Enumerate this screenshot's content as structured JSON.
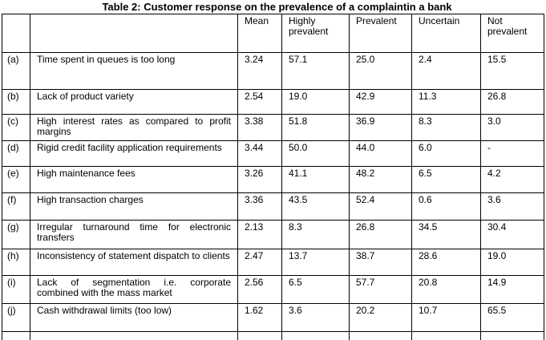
{
  "title": "Table 2: Customer response on the prevalence of a complaintin a bank",
  "headers": [
    "",
    "",
    "Mean",
    "Highly prevalent",
    "Prevalent",
    "Uncertain",
    "Not prevalent"
  ],
  "rows": [
    {
      "label": "(a)",
      "desc": "Time spent in queues is too long",
      "mean": "3.24",
      "highly": "57.1",
      "prevalent": "25.0",
      "uncertain": "2.4",
      "not": "15.5"
    },
    {
      "label": "(b)",
      "desc": "Lack of product variety",
      "mean": "2.54",
      "highly": "19.0",
      "prevalent": "42.9",
      "uncertain": "11.3",
      "not": "26.8"
    },
    {
      "label": "(c)",
      "desc": "High interest rates as compared to profit margins",
      "mean": "3.38",
      "highly": "51.8",
      "prevalent": "36.9",
      "uncertain": "8.3",
      "not": "3.0"
    },
    {
      "label": "(d)",
      "desc": "Rigid credit facility application requirements",
      "mean": "3.44",
      "highly": "50.0",
      "prevalent": "44.0",
      "uncertain": "6.0",
      "not": "-"
    },
    {
      "label": "(e)",
      "desc": "High maintenance fees",
      "mean": "3.26",
      "highly": "41.1",
      "prevalent": "48.2",
      "uncertain": "6.5",
      "not": "4.2"
    },
    {
      "label": "(f)",
      "desc": "High transaction charges",
      "mean": "3.36",
      "highly": "43.5",
      "prevalent": "52.4",
      "uncertain": "0.6",
      "not": "3.6"
    },
    {
      "label": "(g)",
      "desc": "Irregular turnaround time for electronic transfers",
      "mean": "2.13",
      "highly": "8.3",
      "prevalent": "26.8",
      "uncertain": "34.5",
      "not": "30.4"
    },
    {
      "label": "(h)",
      "desc": "Inconsistency of statement dispatch to clients",
      "mean": "2.47",
      "highly": "13.7",
      "prevalent": "38.7",
      "uncertain": "28.6",
      "not": "19.0"
    },
    {
      "label": "(i)",
      "desc": "Lack of segmentation i.e. corporate combined with the mass market",
      "mean": "2.56",
      "highly": "6.5",
      "prevalent": "57.7",
      "uncertain": "20.8",
      "not": "14.9"
    },
    {
      "label": "(j)",
      "desc": "Cash withdrawal limits (too low)",
      "mean": "1.62",
      "highly": "3.6",
      "prevalent": "20.2",
      "uncertain": "10.7",
      "not": "65.5"
    }
  ]
}
